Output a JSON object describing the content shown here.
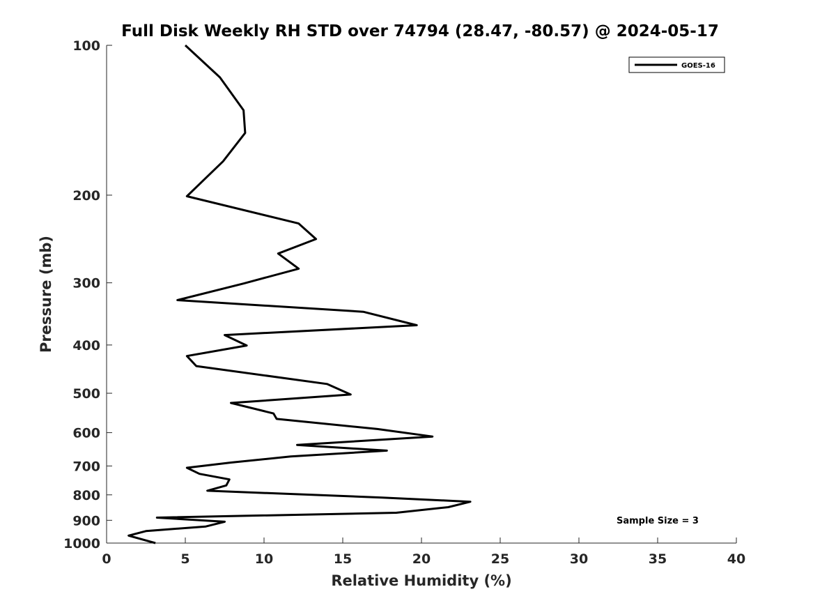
{
  "chart_data": {
    "type": "line",
    "title": "Full Disk Weekly RH STD over 74794 (28.47, -80.57) @ 2024-05-17",
    "xlabel": "Relative Humidity (%)",
    "ylabel": "Pressure (mb)",
    "xlim": [
      0,
      40
    ],
    "ylim": [
      100,
      1000
    ],
    "y_scale": "log",
    "y_reversed": true,
    "x_ticks": [
      0,
      5,
      10,
      15,
      20,
      25,
      30,
      35,
      40
    ],
    "x_tick_labels": [
      "0",
      "5",
      "10",
      "15",
      "20",
      "25",
      "30",
      "35",
      "40"
    ],
    "y_ticks": [
      100,
      200,
      300,
      400,
      500,
      600,
      700,
      800,
      900,
      1000
    ],
    "y_tick_labels": [
      "100",
      "200",
      "300",
      "400",
      "500",
      "600",
      "700",
      "800",
      "900",
      "1000"
    ],
    "grid": false,
    "legend_position": "top-right",
    "annotation": "Sample Size = 3",
    "series": [
      {
        "name": "GOES-16",
        "color": "#000000",
        "points": [
          [
            5.0,
            100
          ],
          [
            7.2,
            116
          ],
          [
            8.7,
            135
          ],
          [
            8.8,
            150
          ],
          [
            7.4,
            171
          ],
          [
            5.1,
            201
          ],
          [
            12.2,
            228
          ],
          [
            13.3,
            245
          ],
          [
            10.9,
            262
          ],
          [
            12.2,
            281
          ],
          [
            8.7,
            301
          ],
          [
            4.5,
            325
          ],
          [
            16.3,
            343
          ],
          [
            19.7,
            365
          ],
          [
            7.5,
            382
          ],
          [
            8.9,
            401
          ],
          [
            5.1,
            421
          ],
          [
            5.7,
            441
          ],
          [
            14.0,
            479
          ],
          [
            15.5,
            503
          ],
          [
            7.9,
            523
          ],
          [
            10.6,
            549
          ],
          [
            10.8,
            563
          ],
          [
            17.2,
            590
          ],
          [
            20.7,
            611
          ],
          [
            12.1,
            635
          ],
          [
            17.8,
            652
          ],
          [
            11.7,
            670
          ],
          [
            7.9,
            689
          ],
          [
            5.1,
            706
          ],
          [
            5.9,
            726
          ],
          [
            7.8,
            745
          ],
          [
            7.6,
            766
          ],
          [
            6.4,
            785
          ],
          [
            17.5,
            810
          ],
          [
            23.1,
            826
          ],
          [
            21.7,
            847
          ],
          [
            18.4,
            869
          ],
          [
            3.2,
            889
          ],
          [
            7.5,
            906
          ],
          [
            6.3,
            926
          ],
          [
            2.5,
            946
          ],
          [
            1.4,
            966
          ],
          [
            3.1,
            1000
          ]
        ]
      }
    ]
  }
}
